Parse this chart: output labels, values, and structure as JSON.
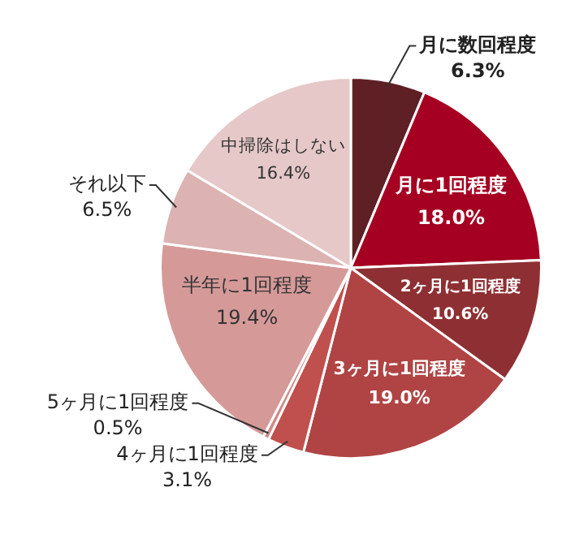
{
  "chart_data": {
    "type": "pie",
    "categories": [
      "月に数回程度",
      "月に1回程度",
      "2ヶ月に1回程度",
      "3ヶ月に1回程度",
      "4ヶ月に1回程度",
      "5ヶ月に1回程度",
      "半年に1回程度",
      "それ以下",
      "中掃除はしない"
    ],
    "values": [
      6.3,
      18.0,
      10.6,
      19.0,
      3.1,
      0.5,
      19.4,
      6.5,
      16.4
    ],
    "value_labels": [
      "6.3%",
      "18.0%",
      "10.6%",
      "19.0%",
      "3.1%",
      "0.5%",
      "19.4%",
      "6.5%",
      "16.4%"
    ],
    "colors": [
      "#5e2024",
      "#a50021",
      "#8e3033",
      "#b04444",
      "#c0504d",
      "#d08a88",
      "#d59a98",
      "#ddb2b2",
      "#e6c8c8"
    ],
    "legend": false
  }
}
